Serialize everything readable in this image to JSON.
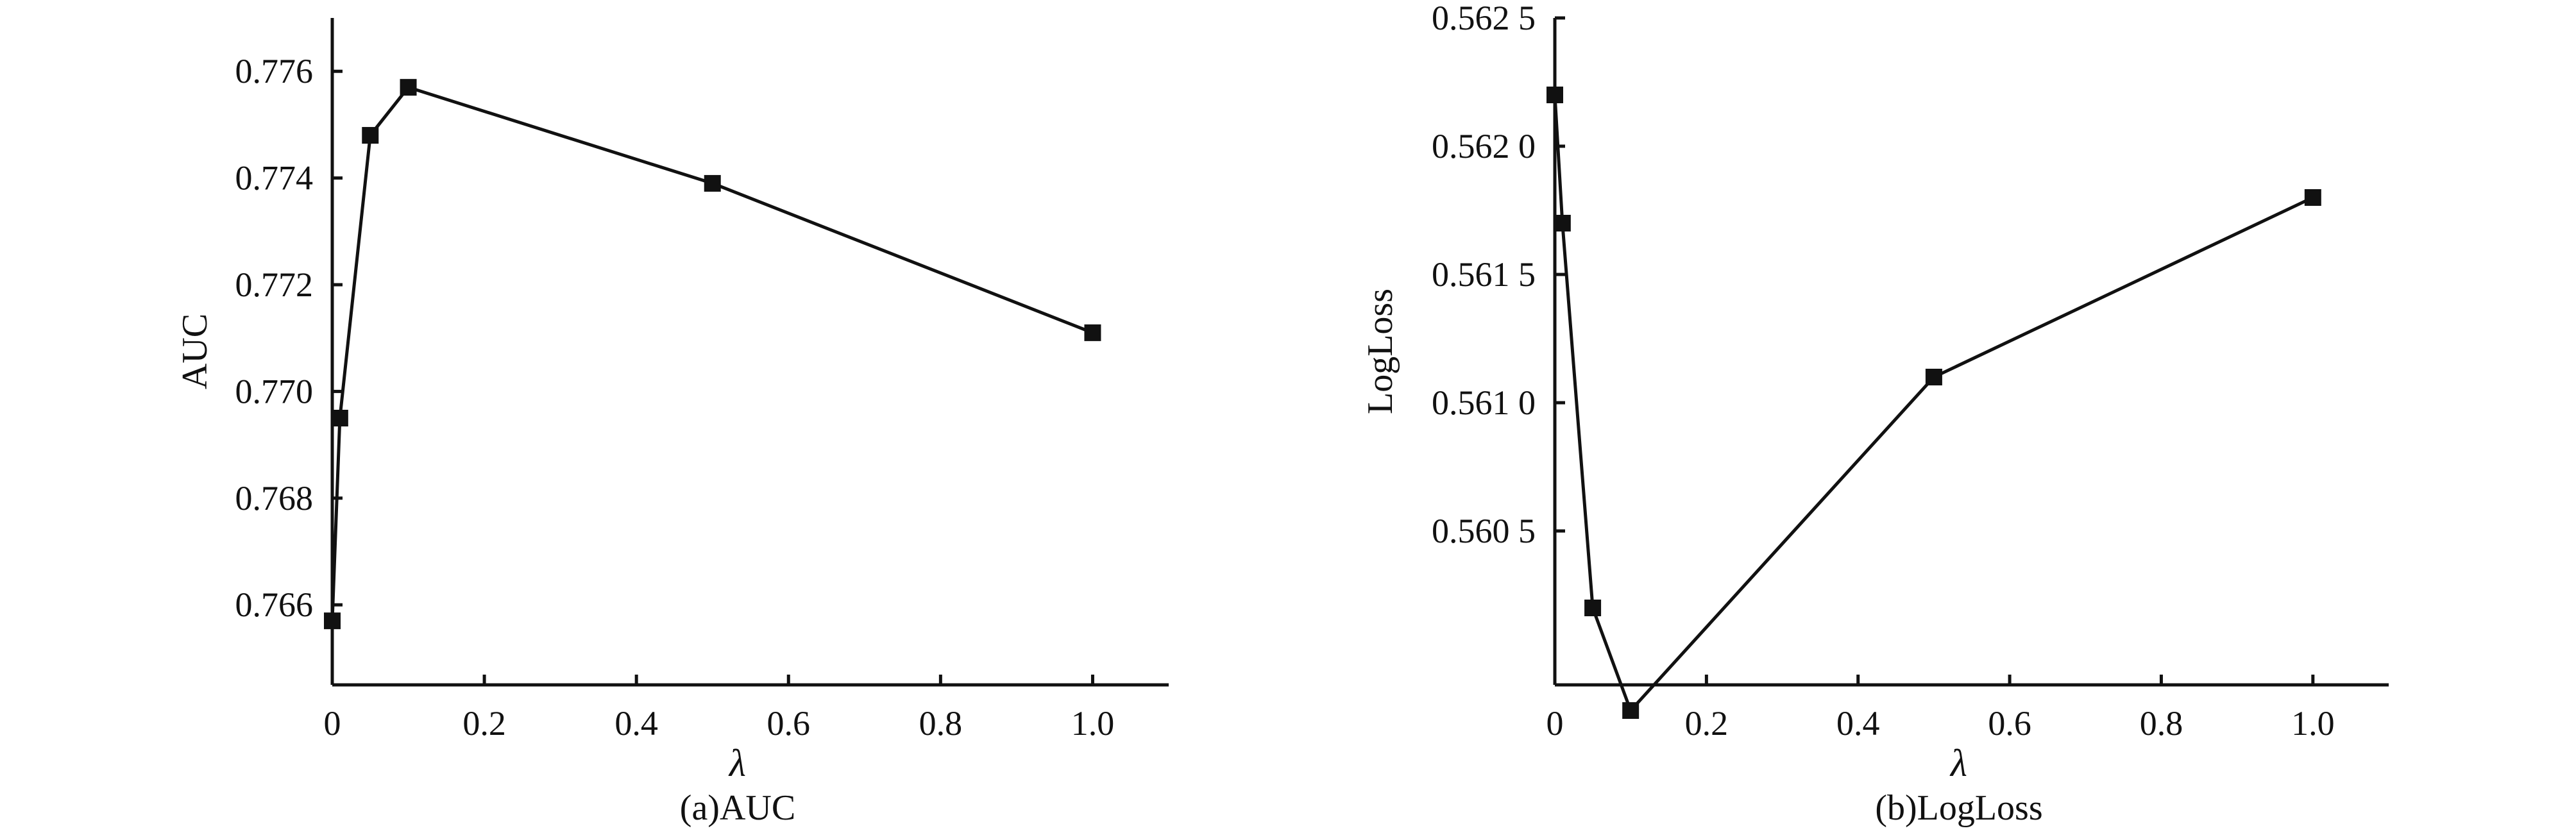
{
  "chart_data": [
    {
      "type": "line",
      "caption": "(a)AUC",
      "xlabel": "λ",
      "ylabel": "AUC",
      "xlim": [
        0,
        1.1
      ],
      "ylim": [
        0.7645,
        0.777
      ],
      "xticks": [
        0,
        0.2,
        0.4,
        0.6,
        0.8,
        1.0
      ],
      "xtick_labels": [
        "0",
        "0.2",
        "0.4",
        "0.6",
        "0.8",
        "1.0"
      ],
      "yticks": [
        0.766,
        0.768,
        0.77,
        0.772,
        0.774,
        0.776
      ],
      "ytick_labels": [
        "0.766",
        "0.768",
        "0.770",
        "0.772",
        "0.774",
        "0.776"
      ],
      "grid": false,
      "marker": "square",
      "line_color": "#111111",
      "series": [
        {
          "x": [
            0,
            0.01,
            0.05,
            0.1,
            0.5,
            1.0
          ],
          "y": [
            0.7657,
            0.7695,
            0.7748,
            0.7757,
            0.7739,
            0.7711
          ]
        }
      ]
    },
    {
      "type": "line",
      "caption": "(b)LogLoss",
      "xlabel": "λ",
      "ylabel": "LogLoss",
      "xlim": [
        0,
        1.1
      ],
      "ylim": [
        0.5599,
        0.5625
      ],
      "xticks": [
        0,
        0.2,
        0.4,
        0.6,
        0.8,
        1.0
      ],
      "xtick_labels": [
        "0",
        "0.2",
        "0.4",
        "0.6",
        "0.8",
        "1.0"
      ],
      "yticks": [
        0.5605,
        0.561,
        0.5615,
        0.562,
        0.5625
      ],
      "ytick_labels": [
        "0.560 5",
        "0.561 0",
        "0.561 5",
        "0.562 0",
        "0.562 5"
      ],
      "grid": false,
      "marker": "square",
      "line_color": "#111111",
      "series": [
        {
          "x": [
            0,
            0.01,
            0.05,
            0.1,
            0.5,
            1.0
          ],
          "y": [
            0.5622,
            0.5617,
            0.5602,
            0.5598,
            0.5611,
            0.5618
          ]
        }
      ]
    }
  ]
}
